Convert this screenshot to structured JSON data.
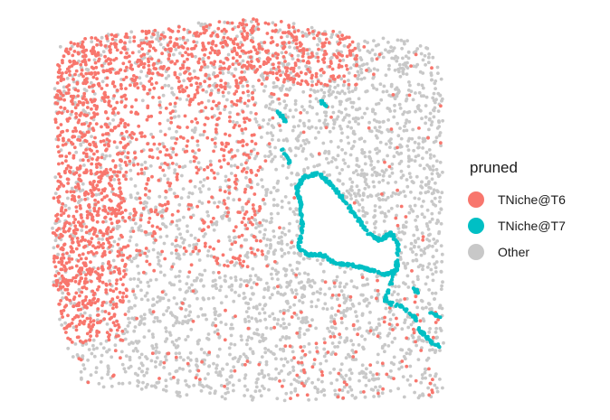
{
  "chart_data": {
    "type": "scatter",
    "title": "",
    "xlabel": "",
    "ylabel": "",
    "axes_visible": false,
    "grid": false,
    "legend": {
      "title": "pruned",
      "position": "right",
      "entries": [
        {
          "name": "TNiche@T6",
          "color": "#F8766D"
        },
        {
          "name": "TNiche@T7",
          "color": "#00BFC4"
        },
        {
          "name": "Other",
          "color": "#C8C8C8"
        }
      ]
    },
    "series": [
      {
        "name": "TNiche@T6",
        "color": "#F8766D",
        "description": "dense in left half and top band; scattered lower-right"
      },
      {
        "name": "TNiche@T7",
        "color": "#00BFC4",
        "description": "thin boundary tracing a hollow region in the right-center"
      },
      {
        "name": "Other",
        "color": "#C8C8C8",
        "description": "background points across the whole tissue, denser on the right"
      }
    ]
  }
}
